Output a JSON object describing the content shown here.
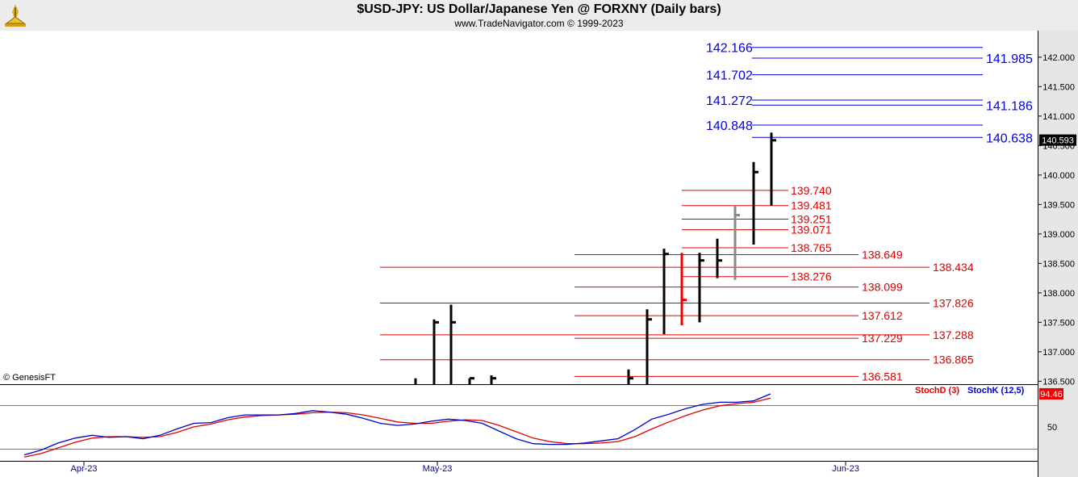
{
  "header": {
    "title": "$USD-JPY:  US Dollar/Japanese Yen @ FORXNY  (Daily bars)",
    "subtitle": "www.TradeNavigator.com © 1999-2023",
    "copyright": "© GenesisFT"
  },
  "chart_data": {
    "type": "ohlc",
    "price_axis": {
      "ylim": [
        136.45,
        142.45
      ],
      "ticks": [
        "136.500",
        "137.000",
        "137.500",
        "138.000",
        "138.500",
        "139.000",
        "139.500",
        "140.000",
        "140.500",
        "141.000",
        "141.500",
        "142.000"
      ],
      "last_price": "140.593",
      "last_price_value": 140.593
    },
    "x_axis": {
      "labels": [
        "Apr-23",
        "May-23",
        "Jun-23"
      ]
    },
    "bars": [
      {
        "low": 136.45,
        "high": 136.55,
        "close": 136.45,
        "color": "black"
      },
      {
        "low": 136.45,
        "high": 137.55,
        "close": 137.5,
        "color": "black"
      },
      {
        "low": 136.45,
        "high": 137.8,
        "close": 137.5,
        "color": "black"
      },
      {
        "low": 136.45,
        "high": 136.55,
        "close": 136.55,
        "color": "black"
      },
      {
        "low": 136.45,
        "high": 136.6,
        "close": 136.55,
        "color": "black"
      },
      {
        "low": 136.45,
        "high": 136.7,
        "close": 136.55,
        "color": "black"
      },
      {
        "low": 136.45,
        "high": 137.72,
        "close": 137.55,
        "color": "black"
      },
      {
        "low": 137.3,
        "high": 138.75,
        "close": 138.66,
        "color": "black"
      },
      {
        "low": 137.45,
        "high": 138.68,
        "close": 137.88,
        "color": "red"
      },
      {
        "low": 137.5,
        "high": 138.68,
        "close": 138.55,
        "color": "black"
      },
      {
        "low": 138.25,
        "high": 138.92,
        "close": 138.55,
        "color": "black"
      },
      {
        "low": 138.22,
        "high": 139.48,
        "close": 139.32,
        "color": "gray"
      },
      {
        "low": 138.82,
        "high": 140.22,
        "close": 140.05,
        "color": "black"
      },
      {
        "low": 139.48,
        "high": 140.72,
        "close": 140.59,
        "color": "black"
      }
    ],
    "levels": [
      {
        "label": "142.166",
        "value": 142.166,
        "color": "blue",
        "side": "left"
      },
      {
        "label": "141.985",
        "value": 141.985,
        "color": "blue",
        "side": "right"
      },
      {
        "label": "141.702",
        "value": 141.702,
        "color": "blue",
        "side": "left"
      },
      {
        "label": "141.272",
        "value": 141.272,
        "color": "blue",
        "side": "left"
      },
      {
        "label": "141.186",
        "value": 141.186,
        "color": "blue",
        "side": "right"
      },
      {
        "label": "140.848",
        "value": 140.848,
        "color": "blue",
        "side": "left"
      },
      {
        "label": "140.638",
        "value": 140.638,
        "color": "blue",
        "side": "right"
      },
      {
        "label": "139.740",
        "value": 139.74,
        "color": "red",
        "group": "a"
      },
      {
        "label": "139.481",
        "value": 139.481,
        "color": "red",
        "group": "a"
      },
      {
        "label": "139.251",
        "value": 139.251,
        "color": "red",
        "group": "a"
      },
      {
        "label": "139.071",
        "value": 139.071,
        "color": "red",
        "group": "a"
      },
      {
        "label": "138.765",
        "value": 138.765,
        "color": "red",
        "group": "a"
      },
      {
        "label": "138.276",
        "value": 138.276,
        "color": "red",
        "group": "a"
      },
      {
        "label": "138.649",
        "value": 138.649,
        "color": "red",
        "group": "b"
      },
      {
        "label": "138.099",
        "value": 138.099,
        "color": "red",
        "group": "b"
      },
      {
        "label": "137.612",
        "value": 137.612,
        "color": "red",
        "group": "b"
      },
      {
        "label": "137.229",
        "value": 137.229,
        "color": "red",
        "group": "b"
      },
      {
        "label": "136.581",
        "value": 136.581,
        "color": "red",
        "group": "b"
      },
      {
        "label": "138.434",
        "value": 138.434,
        "color": "red",
        "group": "c"
      },
      {
        "label": "137.826",
        "value": 137.826,
        "color": "red",
        "group": "c"
      },
      {
        "label": "137.288",
        "value": 137.288,
        "color": "red",
        "group": "c"
      },
      {
        "label": "136.865",
        "value": 136.865,
        "color": "red",
        "group": "c"
      }
    ],
    "stochastic": {
      "legend_d": "StochD (3)",
      "legend_k": "StochK (12,5)",
      "last_value": "94.46",
      "ylim": [
        0,
        100
      ],
      "ticks": [
        "50"
      ],
      "k_values": [
        5,
        12,
        22,
        29,
        33,
        30,
        31,
        28,
        33,
        42,
        50,
        51,
        58,
        62,
        62,
        62,
        64,
        68,
        66,
        63,
        57,
        50,
        47,
        49,
        53,
        56,
        54,
        50,
        39,
        28,
        21,
        20,
        20,
        22,
        25,
        28,
        41,
        56,
        63,
        71,
        77,
        80,
        80,
        82,
        92
      ],
      "d_values": [
        2,
        7,
        15,
        23,
        29,
        31,
        31,
        30,
        31,
        37,
        45,
        49,
        55,
        59,
        61,
        62,
        63,
        65,
        66,
        65,
        62,
        57,
        52,
        50,
        50,
        53,
        55,
        54,
        47,
        38,
        29,
        24,
        21,
        21,
        22,
        24,
        31,
        42,
        52,
        61,
        69,
        75,
        78,
        80,
        86
      ]
    },
    "colors": {
      "level_blue": "#0000dd",
      "level_red": "#dd0000",
      "k_line": "#0000cc",
      "d_line": "#e00000"
    }
  }
}
